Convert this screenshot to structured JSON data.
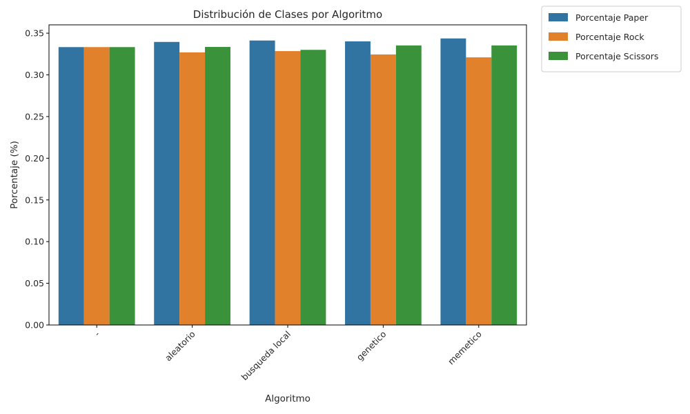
{
  "chart_data": {
    "type": "bar",
    "title": "Distribución de Clases por Algoritmo",
    "xlabel": "Algoritmo",
    "ylabel": "Porcentaje (%)",
    "categories": [
      "-",
      "aleatorio",
      "busqueda local",
      "genetico",
      "memetico"
    ],
    "series": [
      {
        "name": "Porcentaje Paper",
        "color": "#3274a1",
        "values": [
          0.3333,
          0.3395,
          0.3412,
          0.3402,
          0.3437
        ]
      },
      {
        "name": "Porcentaje Rock",
        "color": "#e1812c",
        "values": [
          0.3333,
          0.327,
          0.3285,
          0.3245,
          0.321
        ]
      },
      {
        "name": "Porcentaje Scissors",
        "color": "#3a923a",
        "values": [
          0.3333,
          0.3335,
          0.33,
          0.3353,
          0.3353
        ]
      }
    ],
    "ylim": [
      0,
      0.36
    ],
    "yticks": [
      0.0,
      0.05,
      0.1,
      0.15,
      0.2,
      0.25,
      0.3,
      0.35
    ],
    "ytick_labels": [
      "0.00",
      "0.05",
      "0.10",
      "0.15",
      "0.20",
      "0.25",
      "0.30",
      "0.35"
    ],
    "grid": false,
    "legend_position": "outside-top-right",
    "xtick_rotation": 45
  }
}
